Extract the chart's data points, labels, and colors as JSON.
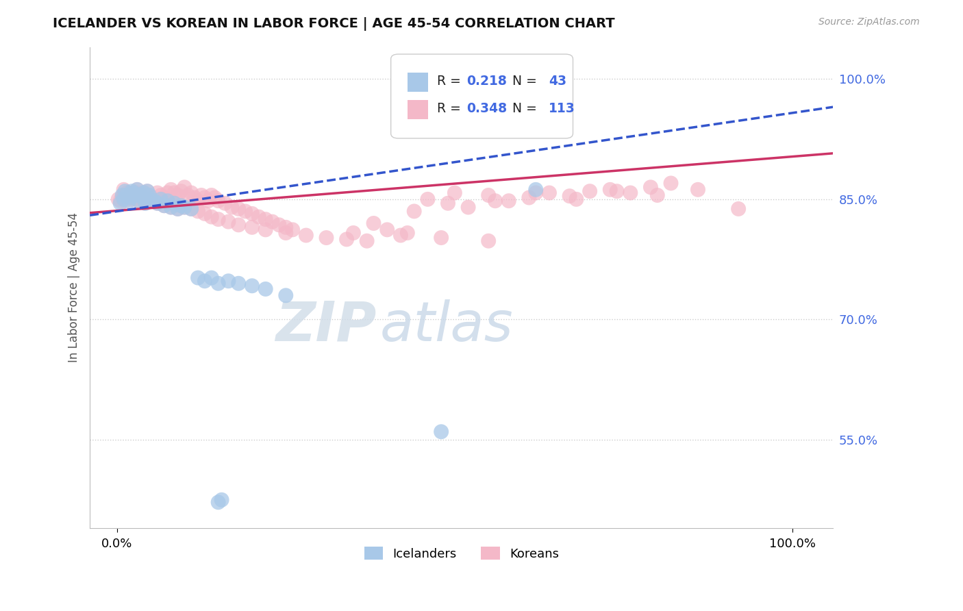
{
  "title": "ICELANDER VS KOREAN IN LABOR FORCE | AGE 45-54 CORRELATION CHART",
  "source": "Source: ZipAtlas.com",
  "ylabel": "In Labor Force | Age 45-54",
  "icelander_R": "0.218",
  "icelander_N": "43",
  "korean_R": "0.348",
  "korean_N": "113",
  "icelander_color": "#a8c8e8",
  "korean_color": "#f4b8c8",
  "trend_icelander_color": "#3355cc",
  "trend_korean_color": "#cc3366",
  "label_color": "#4169e1",
  "ytick_vals": [
    0.55,
    0.7,
    0.85,
    1.0
  ],
  "ytick_labels": [
    "55.0%",
    "70.0%",
    "85.0%",
    "100.0%"
  ],
  "xtick_vals": [
    0.0,
    1.0
  ],
  "xtick_labels": [
    "0.0%",
    "100.0%"
  ],
  "xlim": [
    -0.04,
    1.06
  ],
  "ylim": [
    0.44,
    1.04
  ],
  "legend_labels": [
    "Icelanders",
    "Koreans"
  ],
  "watermark_zip": "ZIP",
  "watermark_atlas": "atlas",
  "icelander_x": [
    0.005,
    0.008,
    0.01,
    0.012,
    0.015,
    0.018,
    0.02,
    0.022,
    0.025,
    0.028,
    0.03,
    0.032,
    0.035,
    0.038,
    0.04,
    0.042,
    0.045,
    0.048,
    0.05,
    0.055,
    0.06,
    0.065,
    0.07,
    0.075,
    0.08,
    0.085,
    0.09,
    0.095,
    0.1,
    0.11,
    0.12,
    0.13,
    0.14,
    0.15,
    0.165,
    0.18,
    0.2,
    0.22,
    0.25,
    0.48,
    0.62,
    0.15,
    0.155
  ],
  "icelander_y": [
    0.845,
    0.855,
    0.85,
    0.86,
    0.855,
    0.848,
    0.852,
    0.86,
    0.858,
    0.855,
    0.862,
    0.848,
    0.855,
    0.852,
    0.858,
    0.845,
    0.86,
    0.855,
    0.85,
    0.848,
    0.845,
    0.85,
    0.842,
    0.848,
    0.84,
    0.845,
    0.838,
    0.842,
    0.84,
    0.838,
    0.752,
    0.748,
    0.752,
    0.745,
    0.748,
    0.745,
    0.742,
    0.738,
    0.73,
    0.56,
    0.862,
    0.472,
    0.475
  ],
  "korean_x": [
    0.002,
    0.005,
    0.008,
    0.01,
    0.012,
    0.015,
    0.018,
    0.02,
    0.022,
    0.025,
    0.028,
    0.03,
    0.032,
    0.035,
    0.038,
    0.04,
    0.042,
    0.045,
    0.048,
    0.05,
    0.055,
    0.06,
    0.065,
    0.07,
    0.075,
    0.08,
    0.085,
    0.09,
    0.095,
    0.1,
    0.11,
    0.12,
    0.13,
    0.14,
    0.15,
    0.165,
    0.18,
    0.2,
    0.22,
    0.25,
    0.28,
    0.31,
    0.34,
    0.37,
    0.4,
    0.43,
    0.46,
    0.49,
    0.52,
    0.55,
    0.58,
    0.61,
    0.64,
    0.67,
    0.7,
    0.73,
    0.76,
    0.79,
    0.82,
    0.01,
    0.015,
    0.02,
    0.025,
    0.03,
    0.035,
    0.04,
    0.045,
    0.05,
    0.055,
    0.06,
    0.065,
    0.07,
    0.075,
    0.08,
    0.085,
    0.09,
    0.095,
    0.1,
    0.105,
    0.11,
    0.115,
    0.12,
    0.125,
    0.13,
    0.135,
    0.14,
    0.145,
    0.15,
    0.16,
    0.17,
    0.18,
    0.19,
    0.2,
    0.21,
    0.22,
    0.23,
    0.24,
    0.25,
    0.26,
    0.35,
    0.42,
    0.48,
    0.55,
    0.38,
    0.44,
    0.5,
    0.56,
    0.62,
    0.68,
    0.74,
    0.8,
    0.86,
    0.92
  ],
  "korean_y": [
    0.85,
    0.848,
    0.852,
    0.855,
    0.848,
    0.852,
    0.858,
    0.855,
    0.85,
    0.858,
    0.852,
    0.862,
    0.848,
    0.855,
    0.852,
    0.858,
    0.845,
    0.86,
    0.855,
    0.85,
    0.848,
    0.845,
    0.85,
    0.842,
    0.848,
    0.84,
    0.845,
    0.838,
    0.842,
    0.84,
    0.838,
    0.835,
    0.832,
    0.828,
    0.825,
    0.822,
    0.818,
    0.815,
    0.812,
    0.808,
    0.805,
    0.802,
    0.8,
    0.798,
    0.812,
    0.808,
    0.85,
    0.845,
    0.84,
    0.855,
    0.848,
    0.852,
    0.858,
    0.854,
    0.86,
    0.862,
    0.858,
    0.865,
    0.87,
    0.862,
    0.858,
    0.855,
    0.85,
    0.858,
    0.852,
    0.848,
    0.855,
    0.852,
    0.848,
    0.858,
    0.855,
    0.852,
    0.858,
    0.862,
    0.858,
    0.855,
    0.86,
    0.865,
    0.855,
    0.858,
    0.852,
    0.848,
    0.855,
    0.852,
    0.848,
    0.855,
    0.852,
    0.848,
    0.845,
    0.84,
    0.838,
    0.835,
    0.832,
    0.828,
    0.825,
    0.822,
    0.818,
    0.815,
    0.812,
    0.808,
    0.805,
    0.802,
    0.798,
    0.82,
    0.835,
    0.858,
    0.848,
    0.858,
    0.85,
    0.86,
    0.855,
    0.862,
    0.838
  ]
}
